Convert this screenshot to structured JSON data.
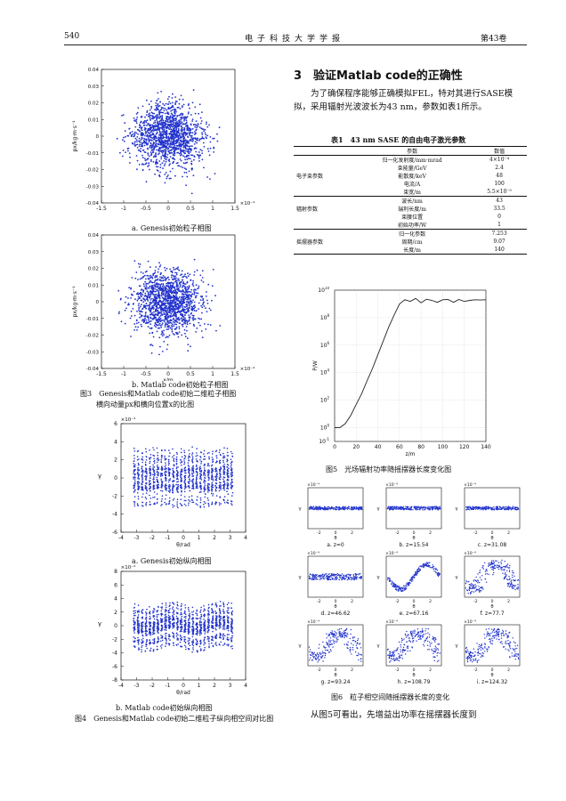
{
  "header": {
    "page_number": "540",
    "journal": "电子科技大学学报",
    "volume": "第43卷"
  },
  "figure3": {
    "a": {
      "caption": "a. Genesis初始粒子相图",
      "ylabel": "px/kg·m·s⁻¹",
      "exp_x": "×10⁻⁴"
    },
    "b": {
      "caption": "b. Matlab code初始粒子相图",
      "ylabel": "px/kg·m·s⁻¹",
      "xlabel": "x/m",
      "exp_x": "×10⁻⁴"
    },
    "caption_line1": "图3　Genesis和Matlab code初始二维粒子相图",
    "caption_line2": "横向动量px和横向位置x的比图"
  },
  "figure4": {
    "a": {
      "caption": "a. Genesis初始纵向相图",
      "ylabel": "γ",
      "exp_y": "×10⁻⁴",
      "xlabel": "θ/rad"
    },
    "b": {
      "caption": "b. Matlab code初始纵向相图",
      "ylabel": "γ",
      "exp_y": "×10⁻⁴",
      "xlabel": "θ/rad"
    },
    "caption": "图4　Genesis和Matlab code初始二维粒子纵向相空间对比图"
  },
  "section": {
    "title": "3　验证Matlab code的正确性",
    "para1": "　　为了确保程序能够正确模拟FEL，特对其进行SASE模拟，采用辐射光波波长为43 nm，参数如表1所示。",
    "para2": "　　从图5可看出，先增益出功率在摇摆器长度到"
  },
  "table1": {
    "title": "表1　43 nm SASE 的自由电子激光参数",
    "head": [
      "",
      "参数",
      "数值"
    ],
    "rows": [
      [
        "",
        "归一化发射度/mm·mrad",
        "4×10⁻⁴"
      ],
      [
        "",
        "束能量/GeV",
        "2.4"
      ],
      [
        "电子束参数",
        "能散度/keV",
        "48"
      ],
      [
        "",
        "电流/A",
        "100"
      ],
      [
        "",
        "束宽/m",
        "5.5×10⁻⁵"
      ],
      [
        "",
        "波长/nm",
        "43"
      ],
      [
        "辐射参数",
        "瑞利长度/m",
        "33.5"
      ],
      [
        "",
        "束腰位置",
        "0"
      ],
      [
        "",
        "初始功率/W",
        "1"
      ],
      [
        "",
        "归一化参数",
        "7.253"
      ],
      [
        "摇摆器参数",
        "周期/cm",
        "9.07"
      ],
      [
        "",
        "长度/m",
        "140"
      ]
    ]
  },
  "figure5": {
    "ylabel": "P/W",
    "xlabel": "z/m",
    "caption": "图5　光场辐射功率随摇摆器长度变化图",
    "chart_data": {
      "type": "line",
      "title": "",
      "xlabel": "z/m",
      "ylabel": "P/W",
      "xlim": [
        0,
        140
      ],
      "ylim_log10": [
        -1,
        10
      ],
      "yscale": "log",
      "grid": true,
      "x": [
        0,
        5,
        10,
        15,
        20,
        25,
        30,
        35,
        40,
        45,
        50,
        55,
        60,
        65,
        70,
        75,
        80,
        85,
        90,
        95,
        100,
        105,
        110,
        115,
        120,
        125,
        130,
        135,
        140
      ],
      "y": [
        1,
        1.02,
        2,
        8,
        50,
        300,
        2500,
        20000,
        200000,
        2000000,
        20000000,
        150000000,
        1000000000,
        2000000000,
        1500000000,
        2500000000,
        1200000000,
        2200000000,
        1800000000,
        1300000000,
        2000000000,
        2100000000,
        1300000000,
        2100000000,
        1500000000,
        1800000000,
        2000000000,
        1900000000,
        2000000000
      ]
    }
  },
  "figure6": {
    "caption": "图6　粒子相空间随摇摆器长度的变化",
    "exp": "×10⁻⁴",
    "panels": [
      {
        "label": "a. z=0"
      },
      {
        "label": "b. z=15.54"
      },
      {
        "label": "c. z=31.08"
      },
      {
        "label": "d. z=46.62"
      },
      {
        "label": "e. z=67.16"
      },
      {
        "label": "f. z=77.7"
      },
      {
        "label": "g. z=93.24"
      },
      {
        "label": "h. z=108.79"
      },
      {
        "label": "i. z=124.32"
      }
    ]
  },
  "colors": {
    "scatter": "#2233cc",
    "line": "#222222"
  }
}
